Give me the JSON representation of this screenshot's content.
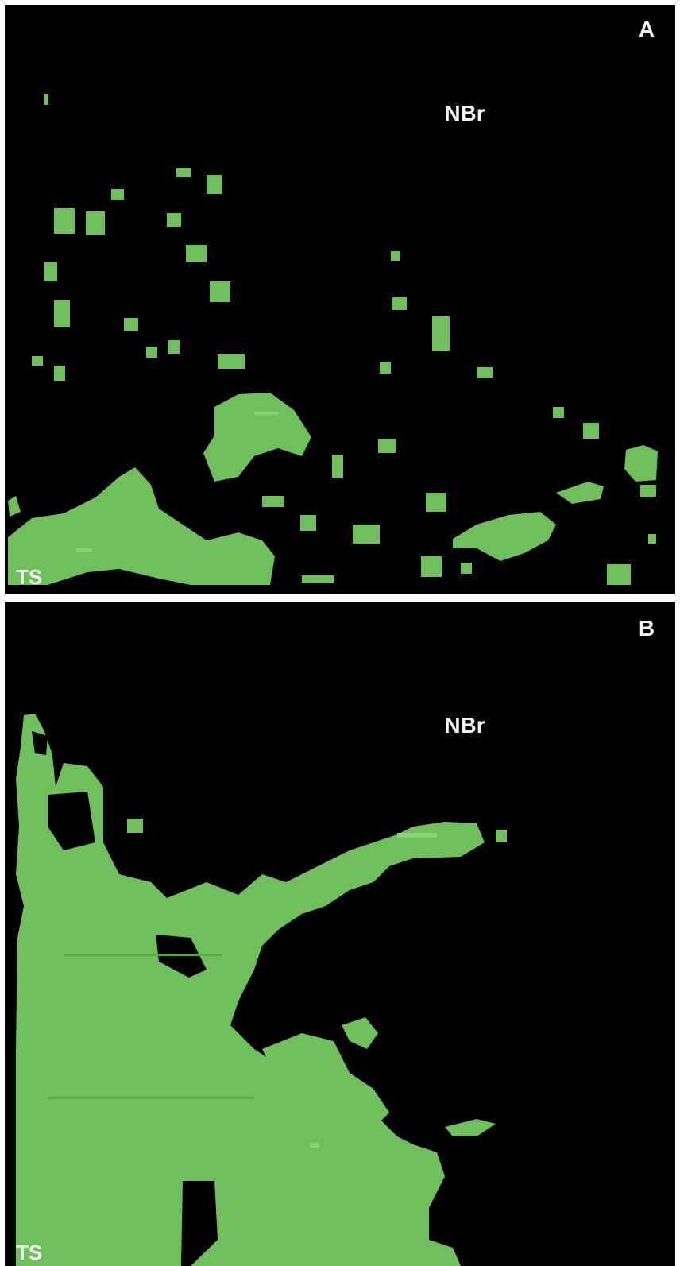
{
  "panels": [
    {
      "label": "A",
      "region": "NBr",
      "corner": "TS"
    },
    {
      "label": "B",
      "region": "NBr",
      "corner": "TS"
    }
  ]
}
